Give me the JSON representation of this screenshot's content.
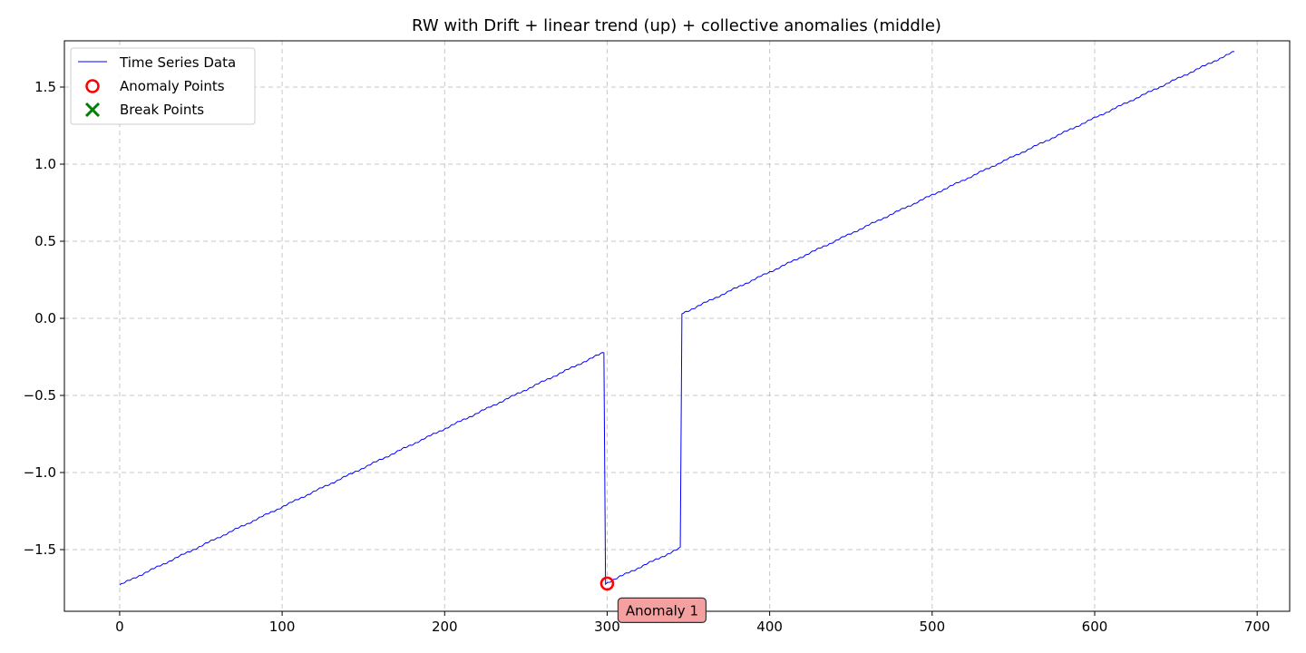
{
  "chart_data": {
    "type": "line",
    "title": "RW with Drift + linear trend (up) + collective anomalies (middle)",
    "xlabel": "",
    "ylabel": "",
    "xlim": [
      -34,
      720
    ],
    "ylim": [
      -1.9,
      1.8
    ],
    "x_ticks": [
      0,
      100,
      200,
      300,
      400,
      500,
      600,
      700
    ],
    "x_tick_labels": [
      "0",
      "100",
      "200",
      "300",
      "400",
      "500",
      "600",
      "700"
    ],
    "y_ticks": [
      -1.5,
      -1.0,
      -0.5,
      0.0,
      0.5,
      1.0,
      1.5
    ],
    "y_tick_labels": [
      "−1.5",
      "−1.0",
      "−0.5",
      "0.0",
      "0.5",
      "1.0",
      "1.5"
    ],
    "grid": true,
    "legend_placement": "top-left",
    "series": [
      {
        "name": "Time Series Data",
        "color": "#0000ff",
        "segments": [
          {
            "x": [
              0,
              298
            ],
            "y": [
              -1.73,
              -0.22
            ]
          },
          {
            "x": [
              299,
              345
            ],
            "y": [
              -1.72,
              -1.49
            ]
          },
          {
            "x": [
              346,
              686
            ],
            "y": [
              0.03,
              1.73
            ]
          }
        ]
      }
    ],
    "anomaly_points": {
      "name": "Anomaly Points",
      "color": "#ff0000",
      "points": [
        {
          "x": 300,
          "y": -1.72
        }
      ]
    },
    "break_points": {
      "name": "Break Points",
      "color": "#008000",
      "points": []
    },
    "annotations": [
      {
        "text": "Anomaly 1",
        "x": 300,
        "y": -1.72,
        "bg": "#f4a0a0"
      }
    ]
  }
}
